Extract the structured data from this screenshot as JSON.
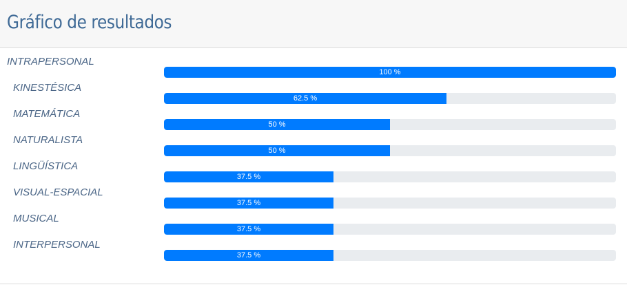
{
  "header": {
    "title": "Gráfico de resultados"
  },
  "chart_data": {
    "type": "bar",
    "orientation": "horizontal",
    "title": "Gráfico de resultados",
    "xlim": [
      0,
      100
    ],
    "unit": "%",
    "categories": [
      "INTRAPERSONAL",
      "KINESTÉSICA",
      "MATEMÁTICA",
      "NATURALISTA",
      "LINGÜÍSTICA",
      "VISUAL-ESPACIAL",
      "MUSICAL",
      "INTERPERSONAL"
    ],
    "values": [
      100,
      62.5,
      50,
      50,
      37.5,
      37.5,
      37.5,
      37.5
    ],
    "value_labels": [
      "100 %",
      "62.5 %",
      "50 %",
      "50 %",
      "37.5 %",
      "37.5 %",
      "37.5 %",
      "37.5 %"
    ],
    "colors": {
      "bar": "#007bff",
      "track": "#e9ecef",
      "label": "#4a6586",
      "title": "#3f6a96"
    }
  }
}
